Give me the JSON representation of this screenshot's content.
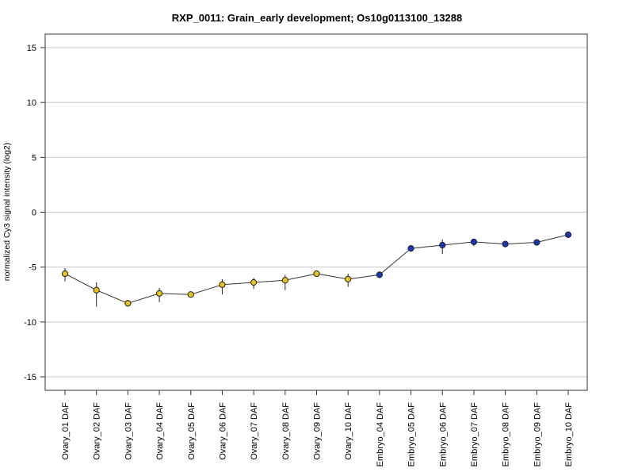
{
  "chart_data": {
    "type": "line",
    "title": "RXP_0011: Grain_early development; Os10g0113100_13288",
    "xlabel": "",
    "ylabel": "normalized Cy3 signal intensity (log2)",
    "ylim": [
      -16.2,
      16.2
    ],
    "yticks": [
      15,
      10,
      5,
      0,
      -5,
      -10,
      -15
    ],
    "ytick_labels": [
      "15",
      "10",
      "5",
      "0",
      "-5",
      "-10",
      "-15"
    ],
    "grid": "horizontal",
    "categories": [
      "Ovary_01 DAF",
      "Ovary_02 DAF",
      "Ovary_03 DAF",
      "Ovary_04 DAF",
      "Ovary_05 DAF",
      "Ovary_06 DAF",
      "Ovary_07 DAF",
      "Ovary_08 DAF",
      "Ovary_09 DAF",
      "Ovary_10 DAF",
      "Embryo_04 DAF",
      "Embryo_05 DAF",
      "Embryo_06 DAF",
      "Embryo_07 DAF",
      "Embryo_08 DAF",
      "Embryo_09 DAF",
      "Embryo_10 DAF"
    ],
    "values": [
      -5.6,
      -7.1,
      -8.3,
      -7.4,
      -7.5,
      -6.6,
      -6.4,
      -6.2,
      -5.6,
      -6.1,
      -5.7,
      -3.3,
      -3.0,
      -2.7,
      -2.9,
      -2.75,
      -2.05
    ],
    "error_low": [
      -6.3,
      -8.6,
      -8.6,
      -8.2,
      -7.5,
      -7.5,
      -7.0,
      -7.1,
      -5.6,
      -6.8,
      -5.7,
      -3.3,
      -3.8,
      -3.1,
      -2.9,
      -2.75,
      -2.05
    ],
    "error_high": [
      -5.1,
      -6.4,
      -8.0,
      -6.9,
      -7.3,
      -6.1,
      -6.0,
      -5.7,
      -5.5,
      -5.6,
      -5.7,
      -3.3,
      -2.5,
      -2.5,
      -2.8,
      -2.75,
      -2.05
    ],
    "point_colors": [
      "#e8c51b",
      "#e8c51b",
      "#e8c51b",
      "#e8c51b",
      "#e8c51b",
      "#e8c51b",
      "#e8c51b",
      "#e8c51b",
      "#e8c51b",
      "#e8c51b",
      "#1737b8",
      "#1737b8",
      "#1737b8",
      "#1737b8",
      "#1737b8",
      "#1737b8",
      "#1737b8"
    ],
    "line_color": "#333333",
    "grid_color": "#c8c8c8"
  }
}
